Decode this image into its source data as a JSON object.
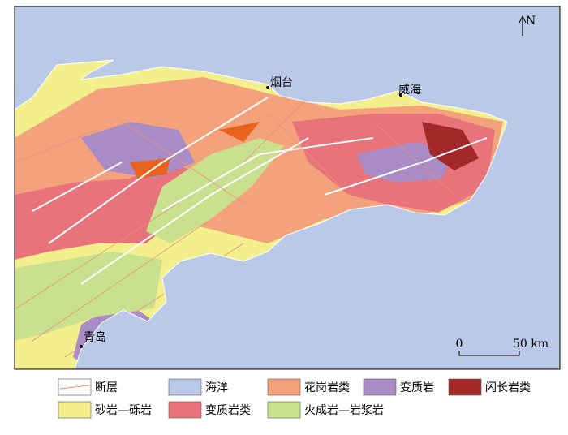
{
  "map": {
    "north": "N",
    "cities": [
      {
        "name": "烟台"
      },
      {
        "name": "威海"
      },
      {
        "name": "青岛"
      }
    ],
    "scale_bar": {
      "start": "0",
      "end": "50 km"
    },
    "legend": [
      {
        "label": "断层",
        "color": "#e8907a",
        "kind": "line"
      },
      {
        "label": "海洋",
        "color": "#b9c9e7"
      },
      {
        "label": "花岗岩类",
        "color": "#f4a27c"
      },
      {
        "label": "变质岩",
        "color": "#a98bc6"
      },
      {
        "label": "闪长岩类",
        "color": "#a3282a"
      },
      {
        "label": "砂岩—砾岩",
        "color": "#f3ef8c"
      },
      {
        "label": "变质岩类",
        "color": "#e8737a"
      },
      {
        "label": "火成岩—岩浆岩",
        "color": "#c9e08f"
      }
    ]
  }
}
